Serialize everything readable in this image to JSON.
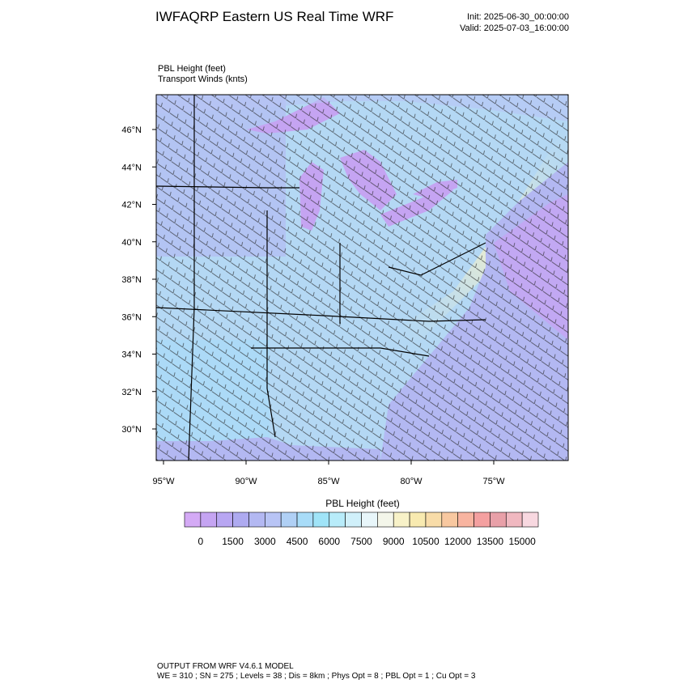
{
  "header": {
    "title": "IWFAQRP Eastern US Real Time WRF",
    "init": "Init: 2025-06-30_00:00:00",
    "valid": "Valid: 2025-07-03_16:00:00"
  },
  "fields": {
    "shaded": "PBL Height   (feet)",
    "vectors": "Transport Winds   (knts)"
  },
  "map": {
    "lat_labels": [
      "46°N",
      "44°N",
      "42°N",
      "40°N",
      "38°N",
      "36°N",
      "34°N",
      "32°N",
      "30°N"
    ],
    "lon_labels": [
      "95°W",
      "90°W",
      "85°W",
      "80°W",
      "75°W"
    ]
  },
  "colorbar": {
    "title": "PBL Height  (feet)",
    "ticks": [
      0,
      1500,
      3000,
      4500,
      6000,
      7500,
      9000,
      10500,
      12000,
      13500,
      15000
    ],
    "colors": [
      "#d4aaf5",
      "#c5a4f2",
      "#b8a6f2",
      "#aeaaf0",
      "#b3b8f2",
      "#b8c4f5",
      "#b0d0f5",
      "#a8dcf8",
      "#a0e4f8",
      "#b8ecfa",
      "#d0f0fa",
      "#e8f6fa",
      "#f4f6ea",
      "#f8f2c8",
      "#f8eab0",
      "#f8dca8",
      "#f8c8a0",
      "#f8b4a0",
      "#f4a0a0",
      "#e8a0a8",
      "#f0b8c0",
      "#f8d8e0"
    ]
  },
  "footer": {
    "line1": "OUTPUT FROM WRF V4.6.1 MODEL",
    "line2": "WE = 310 ; SN = 275 ; Levels = 38 ; Dis = 8km ; Phys Opt = 8 ; PBL Opt = 1 ; Cu Opt = 3"
  }
}
